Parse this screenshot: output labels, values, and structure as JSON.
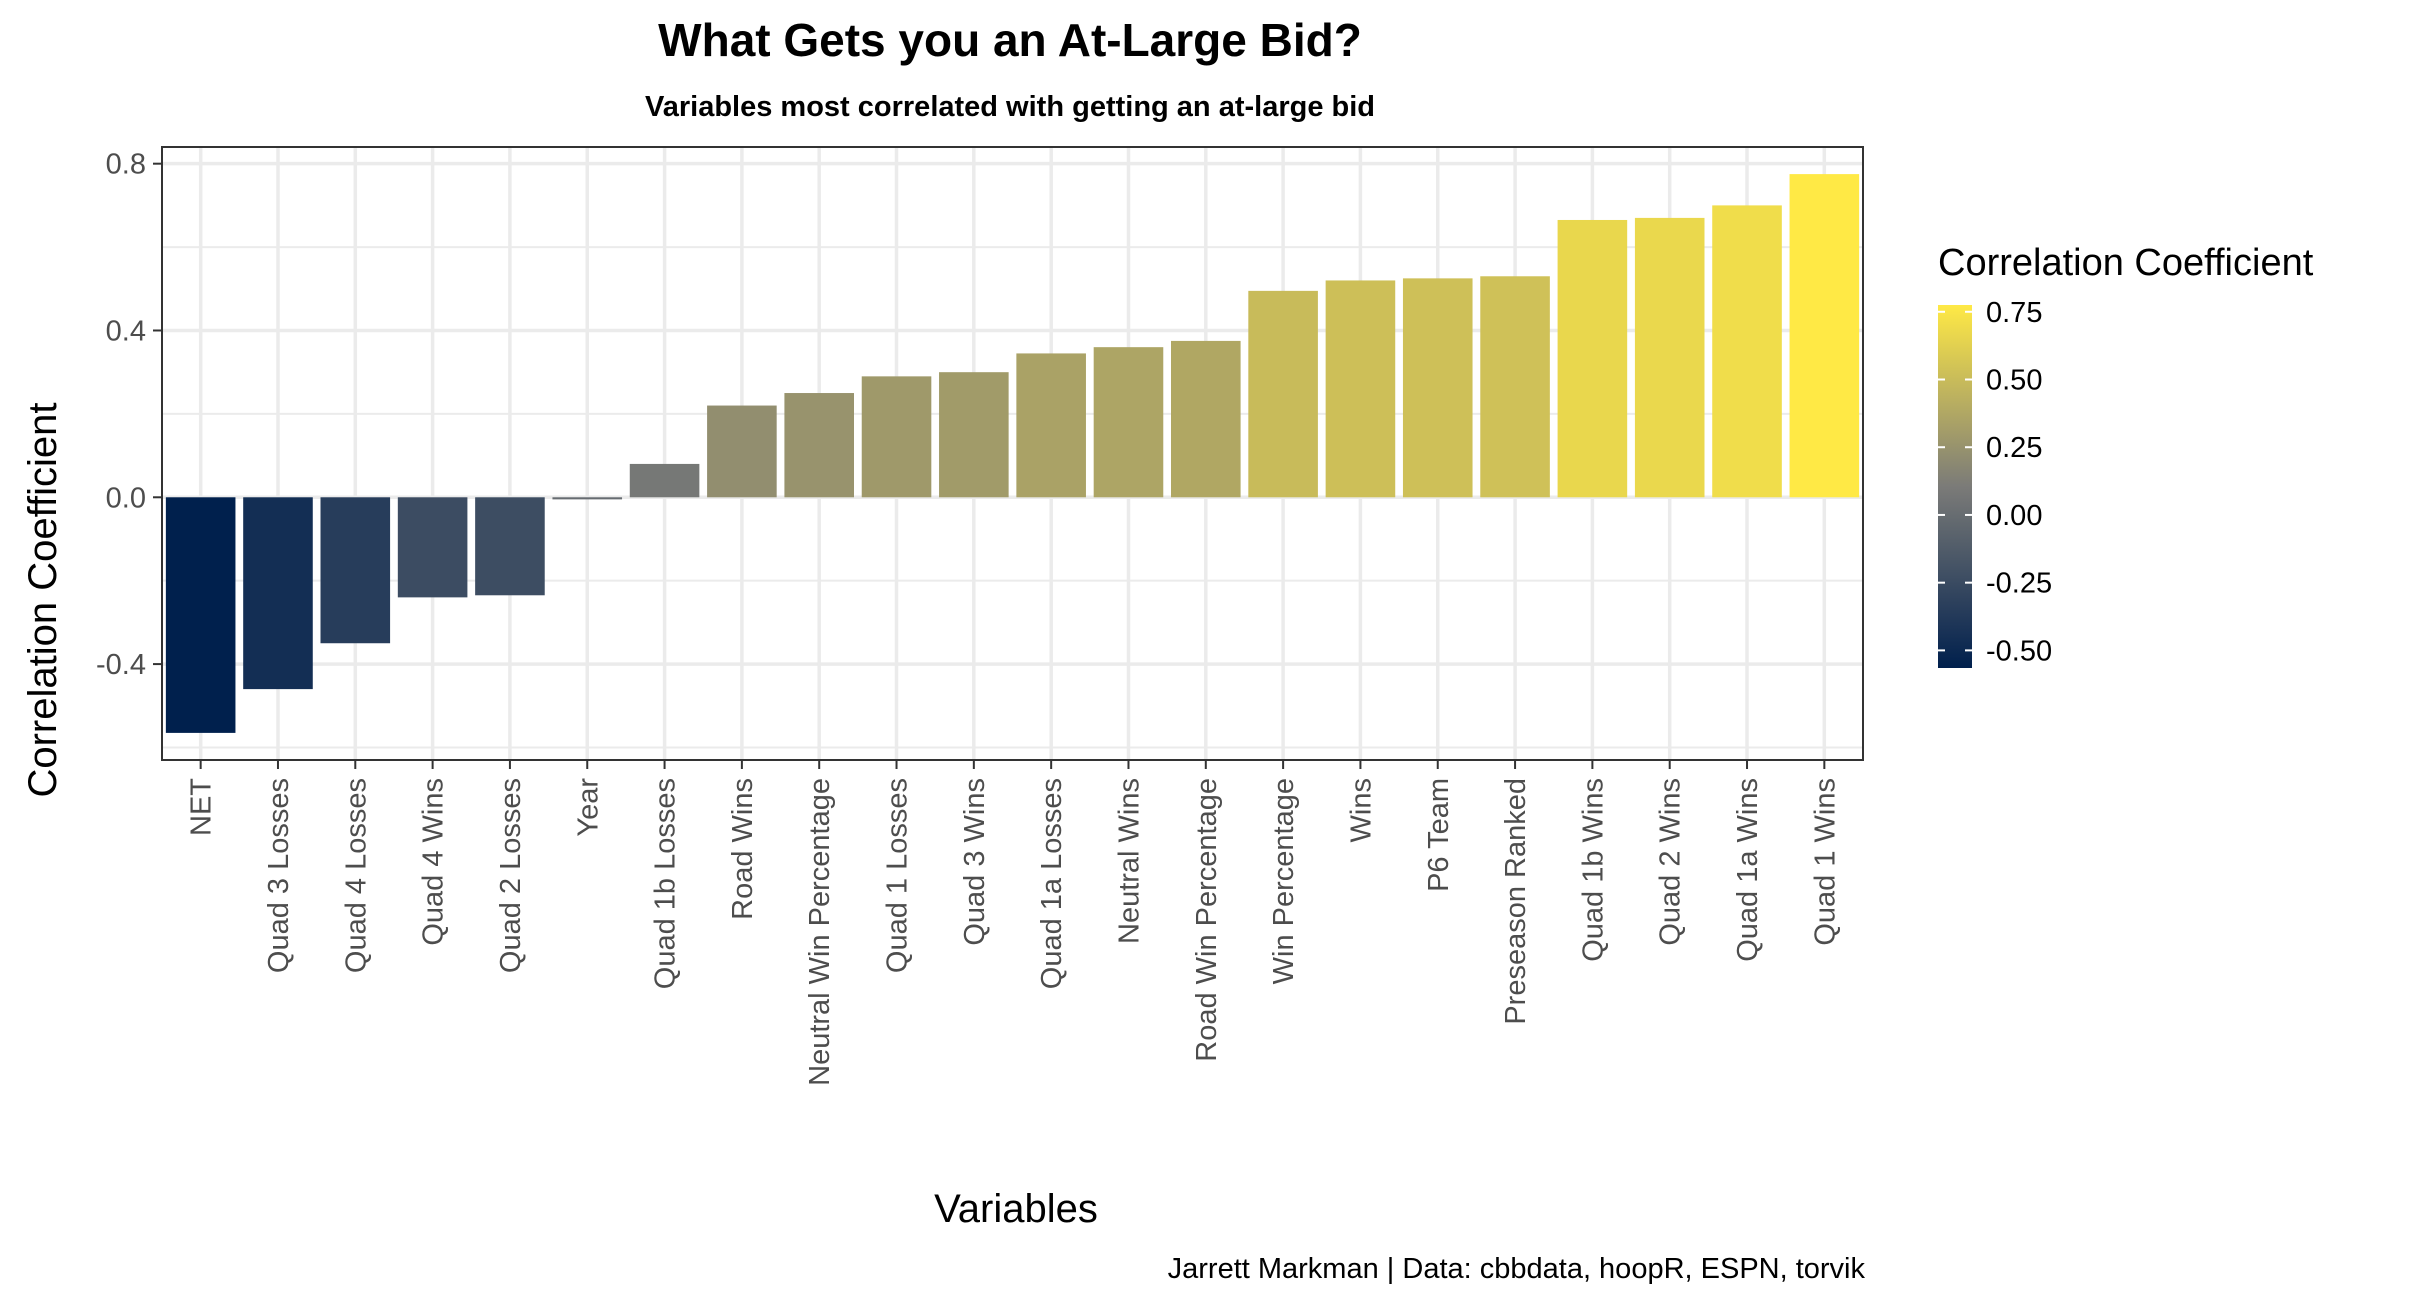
{
  "chart_data": {
    "type": "bar",
    "title": "What Gets you an At-Large Bid?",
    "subtitle": "Variables most correlated with getting an at-large bid",
    "xlabel": "Variables",
    "ylabel": "Correlation Coefficient",
    "caption": "Jarrett Markman | Data: cbbdata, hoopR, ESPN, torvik",
    "ylim": [
      -0.63,
      0.84
    ],
    "yticks": [
      -0.4,
      0.0,
      0.4,
      0.8
    ],
    "ytick_labels": [
      "-0.4",
      "0.0",
      "0.4",
      "0.8"
    ],
    "grid": true,
    "categories": [
      "NET",
      "Quad 3 Losses",
      "Quad 4 Losses",
      "Quad 4 Wins",
      "Quad 2 Losses",
      "Year",
      "Quad 1b Losses",
      "Road Wins",
      "Neutral Win Percentage",
      "Quad 1 Losses",
      "Quad 3 Wins",
      "Quad 1a Losses",
      "Neutral Wins",
      "Road Win Percentage",
      "Win Percentage",
      "Wins",
      "P6 Team",
      "Preseason Ranked",
      "Quad 1b Wins",
      "Quad 2 Wins",
      "Quad 1a Wins",
      "Quad 1 Wins"
    ],
    "values": [
      -0.565,
      -0.46,
      -0.35,
      -0.24,
      -0.235,
      -0.005,
      0.08,
      0.22,
      0.25,
      0.29,
      0.3,
      0.345,
      0.36,
      0.375,
      0.495,
      0.52,
      0.525,
      0.53,
      0.665,
      0.67,
      0.7,
      0.775
    ],
    "legend": {
      "title": "Correlation Coefficient",
      "position": "right",
      "range": [
        -0.565,
        0.775
      ],
      "breaks": [
        0.75,
        0.5,
        0.25,
        0.0,
        -0.25,
        -0.5
      ],
      "labels": [
        "0.75",
        "0.50",
        "0.25",
        "0.00",
        "-0.25",
        "-0.50"
      ]
    },
    "colors": {
      "low": "#00204d",
      "mid": "#7b7b78",
      "high": "#ffe945",
      "panel_border": "#333333",
      "grid": "#ebebeb",
      "tick": "#333333"
    }
  }
}
